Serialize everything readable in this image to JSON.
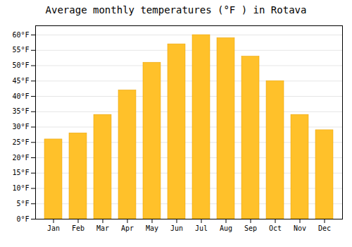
{
  "chart_data": {
    "type": "bar",
    "title": "Average monthly temperatures (°F ) in Rotava",
    "categories": [
      "Jan",
      "Feb",
      "Mar",
      "Apr",
      "May",
      "Jun",
      "Jul",
      "Aug",
      "Sep",
      "Oct",
      "Nov",
      "Dec"
    ],
    "values": [
      26,
      28,
      34,
      42,
      51,
      57,
      60,
      59,
      53,
      45,
      34,
      29
    ],
    "color": "#FFC12A",
    "ylim": [
      0,
      63
    ],
    "yticks": [
      {
        "value": 0,
        "label": "0°F"
      },
      {
        "value": 5,
        "label": "5°F"
      },
      {
        "value": 10,
        "label": "10°F"
      },
      {
        "value": 15,
        "label": "15°F"
      },
      {
        "value": 20,
        "label": "20°F"
      },
      {
        "value": 25,
        "label": "25°F"
      },
      {
        "value": 30,
        "label": "30°F"
      },
      {
        "value": 35,
        "label": "35°F"
      },
      {
        "value": 40,
        "label": "40°F"
      },
      {
        "value": 45,
        "label": "45°F"
      },
      {
        "value": 50,
        "label": "50°F"
      },
      {
        "value": 55,
        "label": "55°F"
      },
      {
        "value": 60,
        "label": "60°F"
      }
    ],
    "grid": true
  }
}
